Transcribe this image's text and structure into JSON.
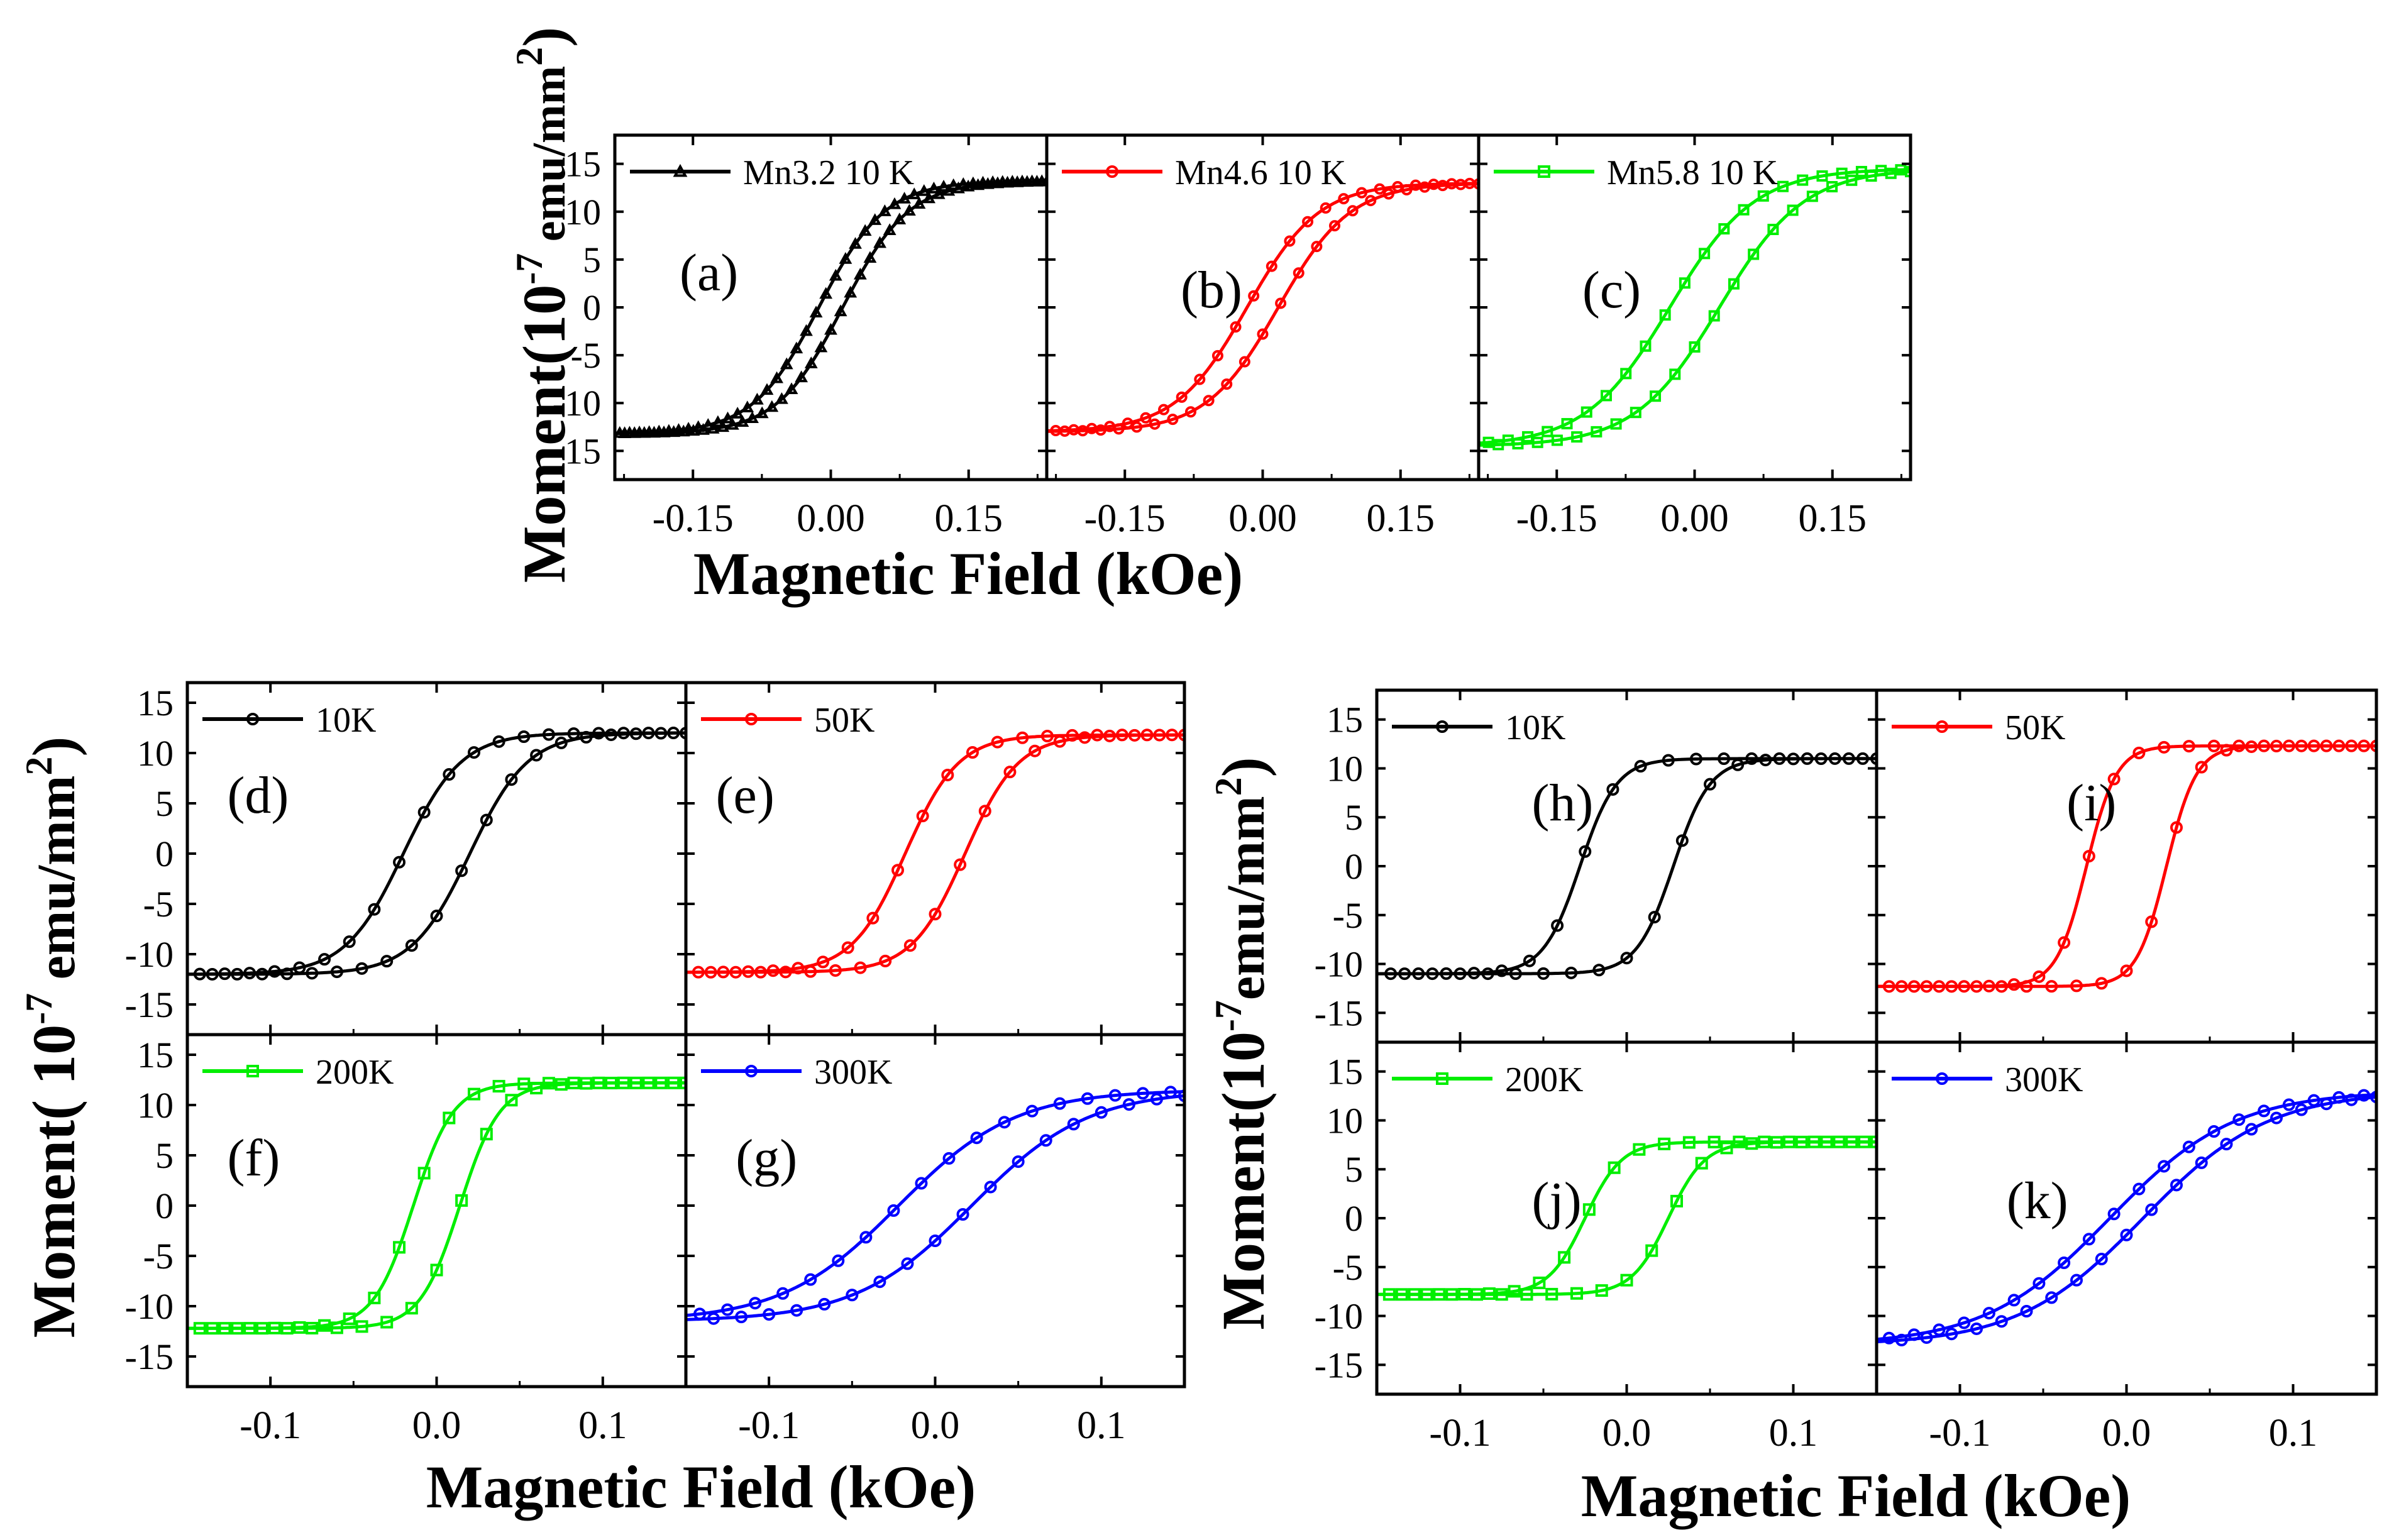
{
  "figure": {
    "top_group": {
      "ylabel_main": "Moment(",
      "ylabel_unit": "10",
      "ylabel_exp": "-7",
      "ylabel_rest": " emu/mm",
      "ylabel_sq": "2",
      "ylabel_close": ")",
      "xlabel": "Magnetic Field (kOe)"
    },
    "left_group": {
      "ylabel_main": "Moment(",
      "ylabel_unit": " 10",
      "ylabel_exp": "-7",
      "ylabel_rest": " emu/mm",
      "ylabel_sq": "2",
      "ylabel_close": ")",
      "xlabel": "Magnetic Field (kOe)"
    },
    "right_group": {
      "ylabel_main": "Moment(",
      "ylabel_unit": "10",
      "ylabel_exp": "-7",
      "ylabel_rest": "emu/mm",
      "ylabel_sq": "2",
      "ylabel_close": ")",
      "xlabel": "Magnetic Field (kOe)"
    }
  },
  "chart_data": [
    {
      "id": "a",
      "type": "line",
      "panel_label": "(a)",
      "legend": "Mn3.2 10 K",
      "color": "#000000",
      "marker": "triangle",
      "xlim": [
        -0.235,
        0.235
      ],
      "ylim": [
        -18,
        18
      ],
      "xticks": [
        "-0.15",
        "0.00",
        "0.15"
      ],
      "yticks": [
        "15",
        "10",
        "5",
        "0",
        "-5",
        "-10",
        "-15"
      ],
      "Ms": 13.2,
      "Hc": 0.013,
      "width": 0.072,
      "n_markers": 44
    },
    {
      "id": "b",
      "type": "line",
      "panel_label": "(b)",
      "legend": "Mn4.6 10 K",
      "color": "#ff0000",
      "marker": "circle",
      "xlim": [
        -0.235,
        0.235
      ],
      "ylim": [
        -18,
        18
      ],
      "xticks": [
        "-0.15",
        "0.00",
        "0.15"
      ],
      "yticks": [],
      "Ms": 13.0,
      "Hc": 0.017,
      "width": 0.078,
      "n_markers": 24
    },
    {
      "id": "c",
      "type": "line",
      "panel_label": "(c)",
      "legend": "Mn5.8 10 K",
      "color": "#00ee00",
      "marker": "square",
      "xlim": [
        -0.235,
        0.235
      ],
      "ylim": [
        -18,
        18
      ],
      "xticks": [
        "-0.15",
        "0.00",
        "0.15"
      ],
      "yticks": [],
      "Ms": 14.5,
      "Hc": 0.027,
      "width": 0.092,
      "n_markers": 22
    },
    {
      "id": "d",
      "type": "line",
      "panel_label": "(d)",
      "legend": "10K",
      "color": "#000000",
      "marker": "circle",
      "xlim": [
        -0.15,
        0.15
      ],
      "ylim": [
        -18,
        17
      ],
      "xticks": [],
      "yticks": [
        "15",
        "10",
        "5",
        "0",
        "-5",
        "-10",
        "-15"
      ],
      "Ms": 12.0,
      "Hc": 0.02,
      "width": 0.035,
      "n_markers": 20
    },
    {
      "id": "e",
      "type": "line",
      "panel_label": "(e)",
      "legend": "50K",
      "color": "#ff0000",
      "marker": "circle",
      "xlim": [
        -0.15,
        0.15
      ],
      "ylim": [
        -18,
        17
      ],
      "xticks": [],
      "yticks": [],
      "Ms": 11.8,
      "Hc": 0.018,
      "width": 0.032,
      "n_markers": 20
    },
    {
      "id": "f",
      "type": "line",
      "panel_label": "(f)",
      "legend": "200K",
      "color": "#00ee00",
      "marker": "square",
      "xlim": [
        -0.15,
        0.15
      ],
      "ylim": [
        -18,
        17
      ],
      "xticks": [
        "-0.1",
        "0.0",
        "0.1"
      ],
      "yticks": [
        "15",
        "10",
        "5",
        "0",
        "-5",
        "-10",
        "-15"
      ],
      "Ms": 12.2,
      "Hc": 0.014,
      "width": 0.024,
      "n_markers": 20
    },
    {
      "id": "g",
      "type": "line",
      "panel_label": "(g)",
      "legend": "300K",
      "color": "#0000ff",
      "marker": "circle",
      "xlim": [
        -0.15,
        0.15
      ],
      "ylim": [
        -18,
        17
      ],
      "xticks": [
        "-0.1",
        "0.0",
        "0.1"
      ],
      "yticks": [],
      "Ms": 11.5,
      "Hc": 0.022,
      "width": 0.07,
      "n_markers": 18
    },
    {
      "id": "h",
      "type": "line",
      "panel_label": "(h)",
      "legend": "10K",
      "color": "#000000",
      "marker": "circle",
      "xlim": [
        -0.15,
        0.15
      ],
      "ylim": [
        -18,
        18
      ],
      "xticks": [],
      "yticks": [
        "15",
        "10",
        "5",
        "0",
        "-5",
        "-10",
        "-15"
      ],
      "Ms": 11.0,
      "Hc": 0.028,
      "width": 0.022,
      "n_markers": 18
    },
    {
      "id": "i",
      "type": "line",
      "panel_label": "(i)",
      "legend": "50K",
      "color": "#ff0000",
      "marker": "circle",
      "xlim": [
        -0.15,
        0.15
      ],
      "ylim": [
        -18,
        18
      ],
      "xticks": [],
      "yticks": [],
      "Ms": 12.3,
      "Hc": 0.024,
      "width": 0.018,
      "n_markers": 20
    },
    {
      "id": "j",
      "type": "line",
      "panel_label": "(j)",
      "legend": "200K",
      "color": "#00ee00",
      "marker": "square",
      "xlim": [
        -0.15,
        0.15
      ],
      "ylim": [
        -18,
        18
      ],
      "xticks": [
        "-0.1",
        "0.0",
        "0.1"
      ],
      "yticks": [
        "15",
        "10",
        "5",
        "0",
        "-5",
        "-10",
        "-15"
      ],
      "Ms": 7.8,
      "Hc": 0.025,
      "width": 0.022,
      "n_markers": 20
    },
    {
      "id": "k",
      "type": "line",
      "panel_label": "(k)",
      "legend": "300K",
      "color": "#0000ff",
      "marker": "circle",
      "xlim": [
        -0.15,
        0.15
      ],
      "ylim": [
        -18,
        18
      ],
      "xticks": [
        "-0.1",
        "0.0",
        "0.1"
      ],
      "yticks": [],
      "Ms": 13.0,
      "Hc": 0.01,
      "width": 0.075,
      "n_markers": 20
    }
  ]
}
